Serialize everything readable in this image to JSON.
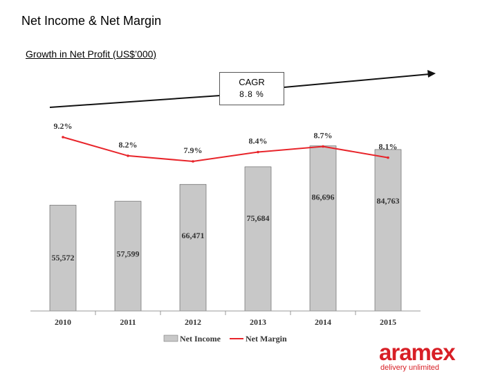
{
  "page": {
    "title": "Net Income & Net Margin",
    "subtitle": "Growth in Net Profit (US$’000)"
  },
  "cagr": {
    "label": "CAGR",
    "value": "8.8 %"
  },
  "chart_data": {
    "type": "bar",
    "categories": [
      "2010",
      "2011",
      "2012",
      "2013",
      "2014",
      "2015"
    ],
    "series": [
      {
        "name": "Net Income",
        "type": "bar",
        "values": [
          55572,
          57599,
          66471,
          75684,
          86696,
          84763
        ],
        "labels": [
          "55,572",
          "57,599",
          "66,471",
          "75,684",
          "86,696",
          "84,763"
        ],
        "color": "#c8c8c8"
      },
      {
        "name": "Net Margin",
        "type": "line",
        "values": [
          9.2,
          8.2,
          7.9,
          8.4,
          8.7,
          8.1
        ],
        "labels": [
          "9.2%",
          "8.2%",
          "7.9%",
          "8.4%",
          "8.7%",
          "8.1%"
        ],
        "color": "#e8242a"
      }
    ],
    "legend": {
      "placement": "bottom"
    },
    "grid": false
  },
  "logo": {
    "word": "aramex",
    "tagline": "delivery unlimited",
    "color": "#d81f26"
  }
}
